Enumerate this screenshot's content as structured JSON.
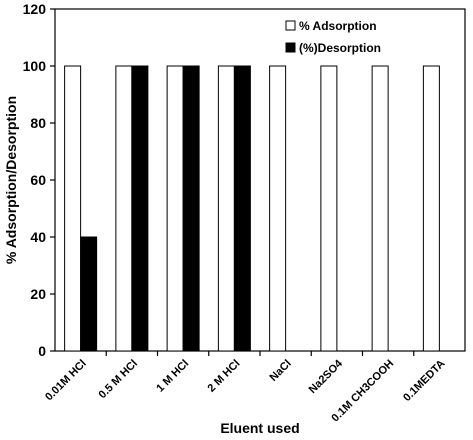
{
  "chart_data": {
    "type": "bar",
    "xlabel": "Eluent used",
    "ylabel": "% Adsorption/Desorption",
    "ylim": [
      0,
      120
    ],
    "yticks": [
      0,
      20,
      40,
      60,
      80,
      100,
      120
    ],
    "legend_position": "top-right",
    "categories": [
      "0.01M HCl",
      "0.5 M HCl",
      "1 M HCl",
      "2 M HCl",
      "NaCl",
      "Na2SO4",
      "0.1M CH3COOH",
      "0.1MEDTA"
    ],
    "series": [
      {
        "name": "% Adsorption",
        "color": "#ffffff",
        "values": [
          100,
          100,
          100,
          100,
          100,
          100,
          100,
          100
        ]
      },
      {
        "name": "(%)Desorption",
        "color": "#000000",
        "values": [
          40,
          100,
          100,
          100,
          0,
          0,
          0,
          0
        ]
      }
    ]
  }
}
